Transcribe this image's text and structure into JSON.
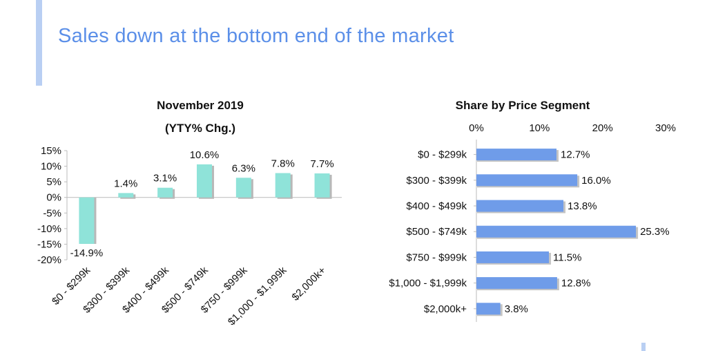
{
  "slide": {
    "title": "Sales down at the bottom end of the market",
    "accent_color": "#5b8fe8"
  },
  "chart_data": [
    {
      "type": "bar",
      "title": "November 2019",
      "subtitle": "(YTY% Chg.)",
      "categories": [
        "$0 - $299k",
        "$300 - $399k",
        "$400 - $499k",
        "$500 - $749k",
        "$750 - $999k",
        "$1,000 - $1,999k",
        "$2,000k+"
      ],
      "values": [
        -14.9,
        1.4,
        3.1,
        10.6,
        6.3,
        7.8,
        7.7
      ],
      "value_labels": [
        "-14.9%",
        "1.4%",
        "3.1%",
        "10.6%",
        "6.3%",
        "7.8%",
        "7.7%"
      ],
      "ylim": [
        -20,
        15
      ],
      "yticks": [
        15,
        10,
        5,
        0,
        -5,
        -10,
        -15,
        -20
      ],
      "ytick_labels": [
        "15%",
        "10%",
        "5%",
        "0%",
        "-5%",
        "-10%",
        "-15%",
        "-20%"
      ],
      "grid": false,
      "bar_color": "#8fe3d9"
    },
    {
      "type": "bar",
      "orientation": "horizontal",
      "title": "Share by Price Segment",
      "categories": [
        "$0 - $299k",
        "$300 - $399k",
        "$400 - $499k",
        "$500 - $749k",
        "$750 - $999k",
        "$1,000 - $1,999k",
        "$2,000k+"
      ],
      "values": [
        12.7,
        16.0,
        13.8,
        25.3,
        11.5,
        12.8,
        3.8
      ],
      "value_labels": [
        "12.7%",
        "16.0%",
        "13.8%",
        "25.3%",
        "11.5%",
        "12.8%",
        "3.8%"
      ],
      "xlim": [
        0,
        30
      ],
      "xticks": [
        0,
        10,
        20,
        30
      ],
      "xtick_labels": [
        "0%",
        "10%",
        "20%",
        "30%"
      ],
      "xaxis_position": "top",
      "grid": false,
      "bar_color": "#6f9ce9"
    }
  ]
}
